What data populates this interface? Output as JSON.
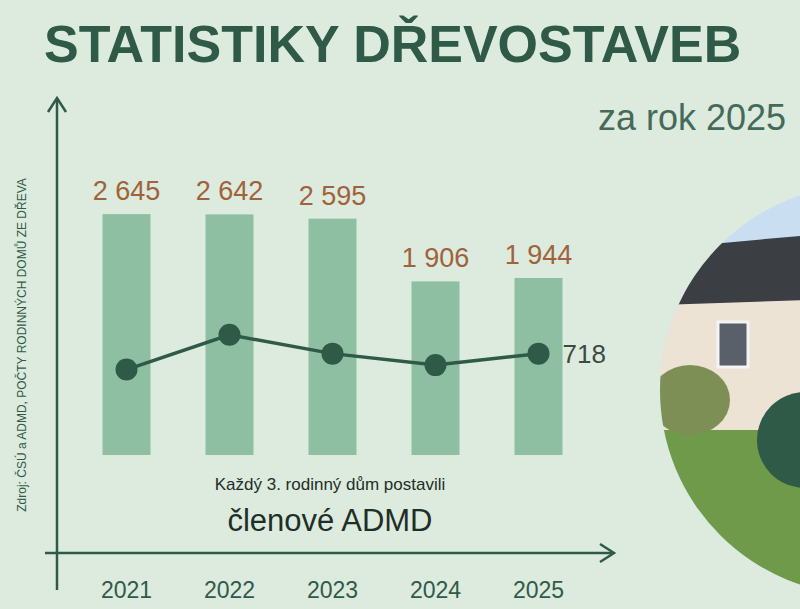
{
  "chart_data": {
    "type": "bar",
    "title": "STATISTIKY DŘEVOSTAVEB",
    "subtitle": "za rok 2025",
    "y_label": "Zdroj: ČSÚ a ADMD, POČTY RODINNÝCH DOMŮ ZE DŘEVA",
    "annotation": [
      "Každý 3. rodinný dům postavili",
      "členové ADMD"
    ],
    "categories": [
      "2021",
      "2022",
      "2023",
      "2024",
      "2025"
    ],
    "ylim": [
      0,
      2800
    ],
    "y2lim": [
      400,
      1200
    ],
    "tick_labels": "x",
    "grid": false,
    "data_labels": true,
    "series": [
      {
        "type": "bar",
        "color": "#8fbfa3",
        "values": [
          2645,
          2642,
          2595,
          1906,
          1944
        ],
        "value_labels": [
          "2 645",
          "2 642",
          "2 595",
          "1 906",
          "1 944"
        ]
      },
      {
        "type": "line",
        "axis": "y2",
        "color": "#2f5a48",
        "marker": "circle",
        "values": [
          668,
          777,
          718,
          682,
          718
        ],
        "value_labels": [
          null,
          null,
          null,
          null,
          "718"
        ]
      }
    ]
  }
}
